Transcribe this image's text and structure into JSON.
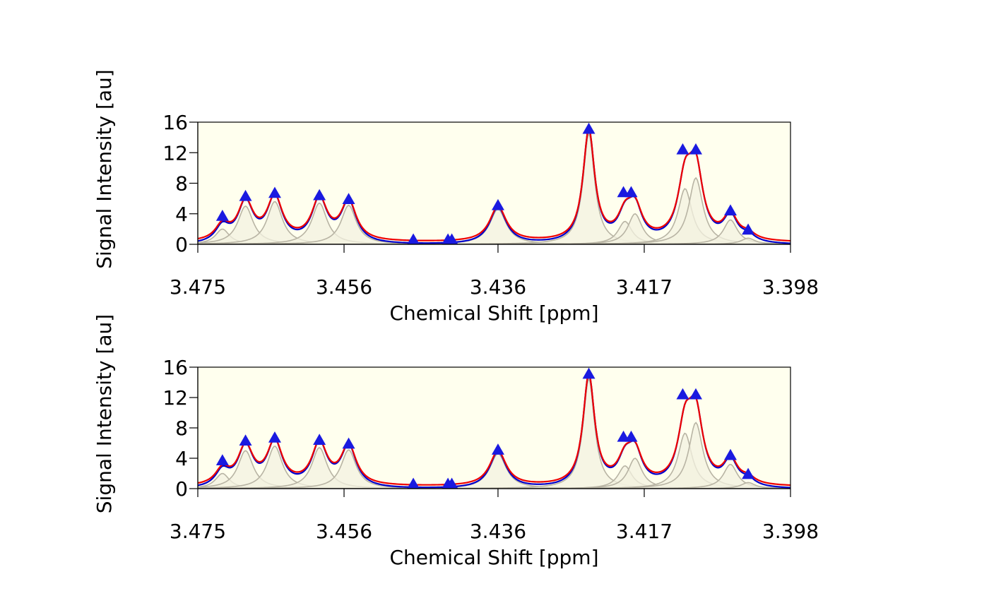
{
  "chart_data": [
    {
      "type": "line",
      "panel": "top",
      "xlabel": "Chemical Shift [ppm]",
      "ylabel": "Signal Intensity [au]",
      "xlim": [
        3.475,
        3.398
      ],
      "ylim": [
        0,
        16
      ],
      "x_reversed": true,
      "xticks": [
        "3.475",
        "3.456",
        "3.436",
        "3.417",
        "3.398"
      ],
      "xtick_values": [
        3.475,
        3.456,
        3.436,
        3.417,
        3.398
      ],
      "yticks": [
        "0",
        "4",
        "8",
        "12",
        "16"
      ],
      "ytick_values": [
        0,
        4,
        8,
        12,
        16
      ],
      "grid": false,
      "background_color": "#FFFFEE",
      "component_fill": "#F3F1E0",
      "component_line": "#B8B4A4",
      "observed_color": "#0000CC",
      "fitted_color": "#EE0000",
      "marker_color": "#1A1AE0",
      "peaks": [
        {
          "x": 3.4718,
          "height": 2.0,
          "width": 0.0011
        },
        {
          "x": 3.4688,
          "height": 5.0,
          "width": 0.0012
        },
        {
          "x": 3.465,
          "height": 5.6,
          "width": 0.0012
        },
        {
          "x": 3.4592,
          "height": 5.4,
          "width": 0.0012
        },
        {
          "x": 3.4554,
          "height": 5.1,
          "width": 0.0012
        },
        {
          "x": 3.436,
          "height": 4.6,
          "width": 0.0013
        },
        {
          "x": 3.4242,
          "height": 14.5,
          "width": 0.0009
        },
        {
          "x": 3.4195,
          "height": 3.0,
          "width": 0.0011
        },
        {
          "x": 3.4182,
          "height": 4.0,
          "width": 0.0011
        },
        {
          "x": 3.4117,
          "height": 7.3,
          "width": 0.0011
        },
        {
          "x": 3.4103,
          "height": 8.7,
          "width": 0.0011
        },
        {
          "x": 3.4058,
          "height": 3.2,
          "width": 0.0011
        },
        {
          "x": 3.4035,
          "height": 0.8,
          "width": 0.0011
        }
      ],
      "baseline": 0.2,
      "markers": [
        {
          "x": 3.4718,
          "y": 3.7
        },
        {
          "x": 3.4688,
          "y": 6.3
        },
        {
          "x": 3.465,
          "y": 6.7
        },
        {
          "x": 3.4592,
          "y": 6.4
        },
        {
          "x": 3.4554,
          "y": 5.9
        },
        {
          "x": 3.447,
          "y": 0.6
        },
        {
          "x": 3.4425,
          "y": 0.6
        },
        {
          "x": 3.442,
          "y": 0.6
        },
        {
          "x": 3.436,
          "y": 5.1
        },
        {
          "x": 3.4242,
          "y": 15.1
        },
        {
          "x": 3.4197,
          "y": 6.8
        },
        {
          "x": 3.4187,
          "y": 6.8
        },
        {
          "x": 3.412,
          "y": 12.4
        },
        {
          "x": 3.4103,
          "y": 12.4
        },
        {
          "x": 3.4058,
          "y": 4.4
        },
        {
          "x": 3.4035,
          "y": 1.9
        }
      ]
    },
    {
      "type": "line",
      "panel": "bottom",
      "xlabel": "Chemical Shift [ppm]",
      "ylabel": "Signal Intensity [au]",
      "xlim": [
        3.475,
        3.398
      ],
      "ylim": [
        0,
        16
      ],
      "x_reversed": true,
      "xticks": [
        "3.475",
        "3.456",
        "3.436",
        "3.417",
        "3.398"
      ],
      "xtick_values": [
        3.475,
        3.456,
        3.436,
        3.417,
        3.398
      ],
      "yticks": [
        "0",
        "4",
        "8",
        "12",
        "16"
      ],
      "ytick_values": [
        0,
        4,
        8,
        12,
        16
      ],
      "grid": false,
      "background_color": "#FFFFEE",
      "component_fill": "#F3F1E0",
      "component_line": "#B8B4A4",
      "observed_color": "#0000CC",
      "fitted_color": "#EE0000",
      "marker_color": "#1A1AE0",
      "peaks": [
        {
          "x": 3.4718,
          "height": 2.0,
          "width": 0.0011
        },
        {
          "x": 3.4688,
          "height": 5.0,
          "width": 0.0012
        },
        {
          "x": 3.465,
          "height": 5.6,
          "width": 0.0012
        },
        {
          "x": 3.4592,
          "height": 5.4,
          "width": 0.0012
        },
        {
          "x": 3.4554,
          "height": 5.1,
          "width": 0.0012
        },
        {
          "x": 3.436,
          "height": 4.6,
          "width": 0.0013
        },
        {
          "x": 3.4242,
          "height": 14.5,
          "width": 0.0009
        },
        {
          "x": 3.4195,
          "height": 3.0,
          "width": 0.0011
        },
        {
          "x": 3.4182,
          "height": 4.0,
          "width": 0.0011
        },
        {
          "x": 3.4117,
          "height": 7.3,
          "width": 0.0011
        },
        {
          "x": 3.4103,
          "height": 8.7,
          "width": 0.0011
        },
        {
          "x": 3.4058,
          "height": 3.2,
          "width": 0.0011
        },
        {
          "x": 3.4035,
          "height": 0.8,
          "width": 0.0011
        }
      ],
      "baseline": 0.2,
      "markers": [
        {
          "x": 3.4718,
          "y": 3.7
        },
        {
          "x": 3.4688,
          "y": 6.3
        },
        {
          "x": 3.465,
          "y": 6.7
        },
        {
          "x": 3.4592,
          "y": 6.4
        },
        {
          "x": 3.4554,
          "y": 5.9
        },
        {
          "x": 3.447,
          "y": 0.6
        },
        {
          "x": 3.4425,
          "y": 0.6
        },
        {
          "x": 3.442,
          "y": 0.6
        },
        {
          "x": 3.436,
          "y": 5.1
        },
        {
          "x": 3.4242,
          "y": 15.1
        },
        {
          "x": 3.4197,
          "y": 6.8
        },
        {
          "x": 3.4187,
          "y": 6.8
        },
        {
          "x": 3.412,
          "y": 12.4
        },
        {
          "x": 3.4103,
          "y": 12.4
        },
        {
          "x": 3.4058,
          "y": 4.4
        },
        {
          "x": 3.4035,
          "y": 1.9
        }
      ]
    }
  ]
}
